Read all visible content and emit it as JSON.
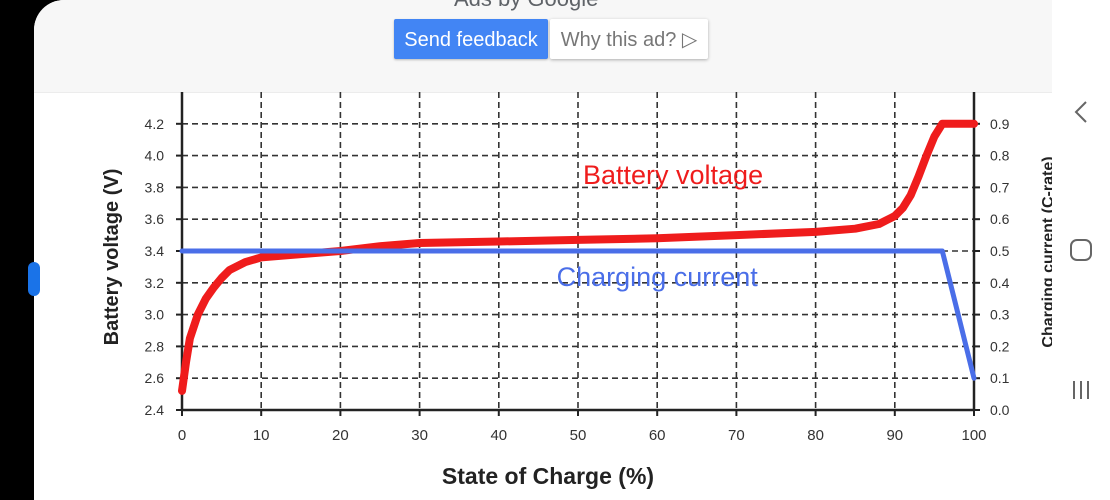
{
  "ad_bar": {
    "ads_by_label": "Ads by Google",
    "send_feedback_label": "Send feedback",
    "why_ad_label": "Why this ad? ▷"
  },
  "nav": {
    "back_icon": "back-chevron-icon",
    "home_icon": "home-icon",
    "recents_icon": "recents-icon"
  },
  "colors": {
    "voltage": "#ef1c1c",
    "current": "#4a6ee8",
    "grid": "#333333",
    "send_feedback_bg": "#4285f4"
  },
  "chart_data": {
    "type": "line",
    "xlabel": "State of Charge (%)",
    "ylabel": "Battery voltage (V)",
    "y2label": "Charging current (C-rate)",
    "xlim": [
      0,
      100
    ],
    "ylim": [
      2.4,
      4.4
    ],
    "y2lim": [
      0.0,
      1.0
    ],
    "x_ticks": [
      0,
      10,
      20,
      30,
      40,
      50,
      60,
      70,
      80,
      90,
      100
    ],
    "y_ticks": [
      2.4,
      2.6,
      2.8,
      3.0,
      3.2,
      3.4,
      3.6,
      3.8,
      4.0,
      4.2
    ],
    "y2_ticks": [
      "0.0",
      "0.1",
      "0.2",
      "0.3",
      "0.4",
      "0.5",
      "0.6",
      "0.7",
      "0.8",
      "0.9"
    ],
    "grid": true,
    "series": [
      {
        "name": "Battery voltage",
        "axis": "left",
        "x": [
          0,
          0.5,
          1,
          2,
          3,
          4,
          5,
          6,
          8,
          10,
          15,
          20,
          25,
          30,
          40,
          50,
          60,
          70,
          80,
          85,
          88,
          90,
          91,
          92,
          93,
          94,
          95,
          96,
          97,
          100
        ],
        "y": [
          2.52,
          2.7,
          2.85,
          3.0,
          3.1,
          3.17,
          3.23,
          3.28,
          3.33,
          3.36,
          3.38,
          3.4,
          3.43,
          3.45,
          3.46,
          3.47,
          3.48,
          3.5,
          3.52,
          3.54,
          3.57,
          3.62,
          3.67,
          3.75,
          3.87,
          4.0,
          4.12,
          4.2,
          4.2,
          4.2
        ]
      },
      {
        "name": "Charging current",
        "axis": "right",
        "x": [
          0,
          96,
          98,
          100
        ],
        "y": [
          0.5,
          0.5,
          0.3,
          0.1
        ]
      }
    ],
    "annotations": [
      {
        "text": "Battery voltage",
        "x": 62,
        "y": 3.82,
        "series": "Battery voltage"
      },
      {
        "text": "Charging current",
        "x": 60,
        "y": 3.18,
        "series": "Charging current"
      }
    ]
  }
}
